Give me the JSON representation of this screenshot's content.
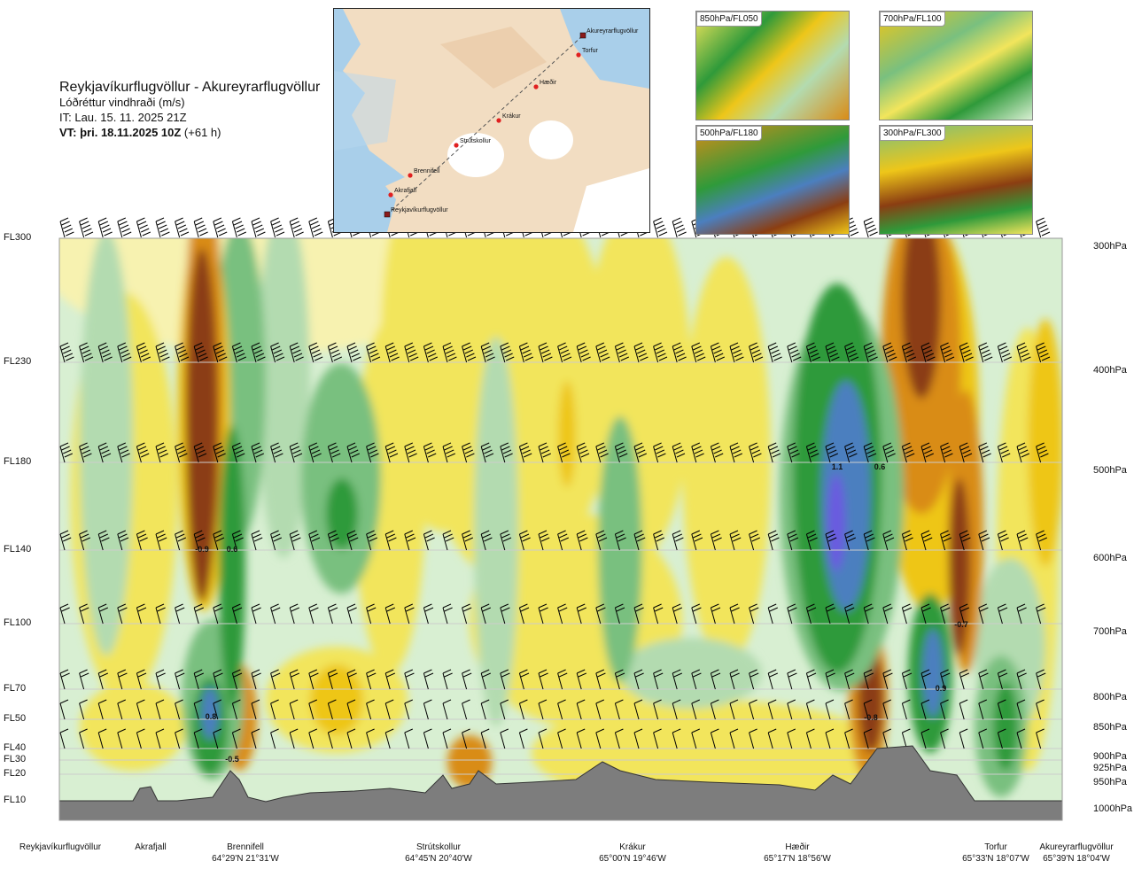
{
  "title": {
    "route": "Reykjavíkurflugvöllur - Akureyrarflugvöllur",
    "parameter": "Lóðréttur vindhraði (m/s)",
    "issue_time": "IT: Lau. 15. 11. 2025 21Z",
    "valid_prefix": "VT: þri. 18.11.2025 10Z",
    "valid_suffix": " (+61 h)"
  },
  "flight_levels": [
    "FL300",
    "FL230",
    "FL180",
    "FL140",
    "FL100",
    "FL70",
    "FL50",
    "FL40",
    "FL30",
    "FL20",
    "FL10"
  ],
  "pressure_levels": [
    "300hPa",
    "400hPa",
    "500hPa",
    "600hPa",
    "700hPa",
    "800hPa",
    "850hPa",
    "900hPa",
    "925hPa",
    "950hPa",
    "1000hPa"
  ],
  "locations": [
    {
      "name": "Reykjavíkurflugvöllur",
      "coord": ""
    },
    {
      "name": "Akrafjall",
      "coord": ""
    },
    {
      "name": "Brennifell",
      "coord": "64°29'N 21°31'W"
    },
    {
      "name": "Strútskollur",
      "coord": "64°45'N 20°40'W"
    },
    {
      "name": "Krákur",
      "coord": "65°00'N 19°46'W"
    },
    {
      "name": "Hæðir",
      "coord": "65°17'N 18°56'W"
    },
    {
      "name": "Torfur",
      "coord": "65°33'N 18°07'W"
    },
    {
      "name": "Akureyrarflugvöllur",
      "coord": "65°39'N 18°04'W"
    }
  ],
  "map_labels": [
    "Akureyrarflugvöllur",
    "Torfur",
    "Hæðir",
    "Krákur",
    "Strútskollur",
    "Brennifell",
    "Akrafjall",
    "Reykjavíkurflugvöllur"
  ],
  "thumbnails": [
    "850hPa/FL050",
    "700hPa/FL100",
    "500hPa/FL180",
    "300hPa/FL300"
  ],
  "contour_labels": [
    "-0.9",
    "0.6",
    "0.8",
    "-0.5",
    "1.1",
    "0.6",
    "-0.7",
    "0.9",
    "-0.8"
  ],
  "colors": {
    "strong_down": "#8b3e12",
    "down": "#d98c17",
    "weak_down": "#eec619",
    "slight_down": "#f2e55c",
    "near_zero_down": "#f7f2b0",
    "near_zero_up": "#d8efd2",
    "slight_up": "#b3dbb0",
    "weak_up": "#79c07f",
    "up": "#2f9a3a",
    "strong_up": "#4b7fbf",
    "very_strong_up": "#6a5ae0",
    "terrain": "#7d7d7d"
  },
  "chart_data": {
    "type": "heatmap",
    "title": "Reykjavíkurflugvöllur - Akureyrarflugvöllur",
    "subtitle": "Lóðréttur vindhraði (m/s)",
    "xlabel": "",
    "ylabel": "",
    "x_labels": [
      "Reykjavíkurflugvöllur",
      "Akrafjall",
      "Brennifell",
      "Strútskollur",
      "Krákur",
      "Hæðir",
      "Torfur",
      "Akureyrarflugvöllur"
    ],
    "y_levels_hpa": [
      300,
      400,
      500,
      600,
      700,
      800,
      850,
      900,
      925,
      950,
      1000
    ],
    "y_levels_fl": [
      "FL300",
      "FL230",
      "FL180",
      "FL140",
      "FL100",
      "FL70",
      "FL50",
      "FL40",
      "FL30",
      "FL20",
      "FL10"
    ],
    "field_extremes": [
      {
        "value": -0.9,
        "near": "Brennifell",
        "level_hpa": 600
      },
      {
        "value": 0.6,
        "near": "Brennifell",
        "level_hpa": 600
      },
      {
        "value": 0.8,
        "near": "Brennifell",
        "level_hpa": 850
      },
      {
        "value": -0.5,
        "near": "Brennifell",
        "level_hpa": 925
      },
      {
        "value": 1.1,
        "near": "Hæðir",
        "level_hpa": 500
      },
      {
        "value": 0.6,
        "near": "Hæðir",
        "level_hpa": 500
      },
      {
        "value": -0.7,
        "near": "Torfur",
        "level_hpa": 700
      },
      {
        "value": 0.9,
        "near": "Torfur",
        "level_hpa": 800
      },
      {
        "value": -0.8,
        "near": "Hæðir",
        "level_hpa": 850
      }
    ],
    "grid": true
  }
}
